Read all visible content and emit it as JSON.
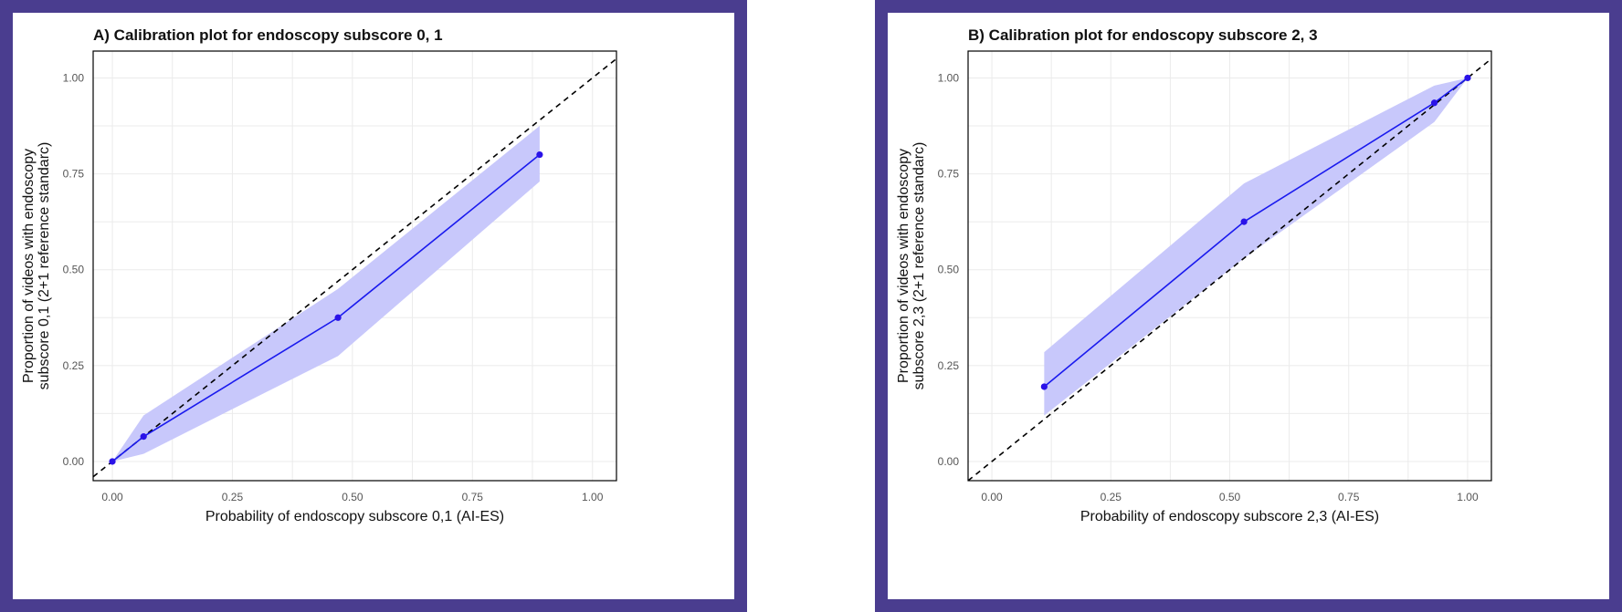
{
  "colors": {
    "frame": "#4a3d8f",
    "line": "#1a1aee",
    "point": "#2a12e8",
    "band": "#c8c8fb",
    "reference": "#000000",
    "grid": "#ebebeb"
  },
  "chart_data": [
    {
      "type": "line",
      "title": "A) Calibration plot for endoscopy subscore 0, 1",
      "xlabel": "Probability of endoscopy subscore 0,1 (AI-ES)",
      "ylabel_lines": [
        "Proportion of videos with endoscopy",
        "subscore 0,1 (2+1 reference standarc)"
      ],
      "xlim": [
        -0.04,
        1.05
      ],
      "ylim": [
        -0.05,
        1.07
      ],
      "x_ticks": [
        0,
        0.25,
        0.5,
        0.75,
        1
      ],
      "y_ticks": [
        0,
        0.25,
        0.5,
        0.75,
        1
      ],
      "x_tick_labels": [
        "0.00",
        "0.25",
        "0.50",
        "0.75",
        "1.00"
      ],
      "y_tick_labels": [
        "0.00",
        "0.25",
        "0.50",
        "0.75",
        "1.00"
      ],
      "reference_line": "y = x (dashed)",
      "grid": true,
      "series": [
        {
          "points": [
            {
              "x": 0.0,
              "y": 0.0
            },
            {
              "x": 0.065,
              "y": 0.065
            },
            {
              "x": 0.47,
              "y": 0.375
            },
            {
              "x": 0.89,
              "y": 0.8
            }
          ]
        }
      ],
      "ci_band": {
        "x": [
          0.0,
          0.065,
          0.47,
          0.89
        ],
        "lower": [
          0.0,
          0.02,
          0.275,
          0.73
        ],
        "upper": [
          0.0,
          0.12,
          0.45,
          0.875
        ]
      }
    },
    {
      "type": "line",
      "title": "B) Calibration plot for endoscopy subscore 2, 3",
      "xlabel": "Probability of endoscopy subscore 2,3 (AI-ES)",
      "ylabel_lines": [
        "Proportion of videos with endoscopy",
        "subscore 2,3 (2+1 reference standarc)"
      ],
      "xlim": [
        -0.05,
        1.05
      ],
      "ylim": [
        -0.05,
        1.07
      ],
      "x_ticks": [
        0,
        0.25,
        0.5,
        0.75,
        1
      ],
      "y_ticks": [
        0,
        0.25,
        0.5,
        0.75,
        1
      ],
      "x_tick_labels": [
        "0.00",
        "0.25",
        "0.50",
        "0.75",
        "1.00"
      ],
      "y_tick_labels": [
        "0.00",
        "0.25",
        "0.50",
        "0.75",
        "1.00"
      ],
      "reference_line": "y = x (dashed)",
      "grid": true,
      "series": [
        {
          "points": [
            {
              "x": 0.11,
              "y": 0.195
            },
            {
              "x": 0.53,
              "y": 0.625
            },
            {
              "x": 0.93,
              "y": 0.935
            },
            {
              "x": 1.0,
              "y": 1.0
            }
          ]
        }
      ],
      "ci_band": {
        "x": [
          0.11,
          0.53,
          0.93,
          1.0
        ],
        "lower": [
          0.12,
          0.53,
          0.885,
          1.0
        ],
        "upper": [
          0.285,
          0.725,
          0.98,
          1.0
        ]
      }
    }
  ]
}
